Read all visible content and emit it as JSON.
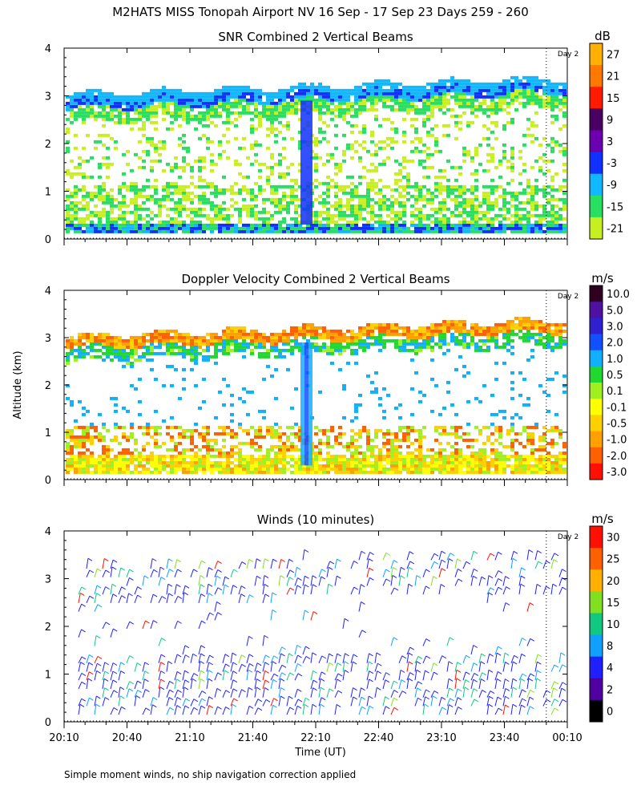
{
  "figure": {
    "title": "M2HATS MISS Tonopah Airport NV  16 Sep - 17 Sep 23 Days 259 - 260",
    "ylabel_shared": "Altitude (km)",
    "xlabel": "Time (UT)",
    "footnote": "Simple moment winds, no ship navigation correction applied",
    "day_marker_label": "Day 2",
    "day_marker_time": "00:00"
  },
  "chart_data": [
    {
      "id": "snr",
      "type": "heatmap",
      "title": "SNR Combined 2 Vertical Beams",
      "units": "dB",
      "ylim": [
        0,
        4
      ],
      "yticks": [
        "0",
        "1",
        "2",
        "3",
        "4"
      ],
      "x_range_hours": [
        20.1667,
        24.1667
      ],
      "cloud_top_km": 3.0,
      "colorbar": {
        "labels": [
          "27",
          "21",
          "15",
          "9",
          "3",
          "-3",
          "-9",
          "-15",
          "-21"
        ],
        "colors": [
          "#ffb000",
          "#ff7800",
          "#ff1a00",
          "#4a0060",
          "#6a00b0",
          "#1030ff",
          "#10b8ff",
          "#28e060",
          "#c8f020"
        ]
      }
    },
    {
      "id": "velocity",
      "type": "heatmap",
      "title": "Doppler Velocity Combined 2 Vertical Beams",
      "units": "m/s",
      "ylim": [
        0,
        4
      ],
      "yticks": [
        "0",
        "1",
        "2",
        "3",
        "4"
      ],
      "x_range_hours": [
        20.1667,
        24.1667
      ],
      "colorbar": {
        "labels": [
          "10.0",
          "5.0",
          "3.0",
          "2.0",
          "1.0",
          "0.5",
          "0.1",
          "-0.1",
          "-0.5",
          "-1.0",
          "-2.0",
          "-3.0"
        ],
        "colors": [
          "#300020",
          "#5010a0",
          "#3020d0",
          "#1050ff",
          "#10b0ff",
          "#20d830",
          "#a0f020",
          "#ffff00",
          "#ffd000",
          "#ffa000",
          "#ff6000",
          "#ff1000"
        ]
      }
    },
    {
      "id": "winds",
      "type": "scatter",
      "title": "Winds (10 minutes)",
      "units": "m/s",
      "ylim": [
        0,
        4
      ],
      "yticks": [
        "0",
        "1",
        "2",
        "3",
        "4"
      ],
      "x_range_hours": [
        20.1667,
        24.1667
      ],
      "xticks": [
        "20:10",
        "20:40",
        "21:10",
        "21:40",
        "22:10",
        "22:40",
        "23:10",
        "23:40",
        "00:10"
      ],
      "colorbar": {
        "labels": [
          "30",
          "25",
          "20",
          "15",
          "10",
          "8",
          "4",
          "2",
          "0"
        ],
        "colors": [
          "#ff1000",
          "#ff6000",
          "#ffb000",
          "#80e020",
          "#10c880",
          "#10a0ff",
          "#2020ff",
          "#5000a0",
          "#000000"
        ]
      }
    }
  ]
}
